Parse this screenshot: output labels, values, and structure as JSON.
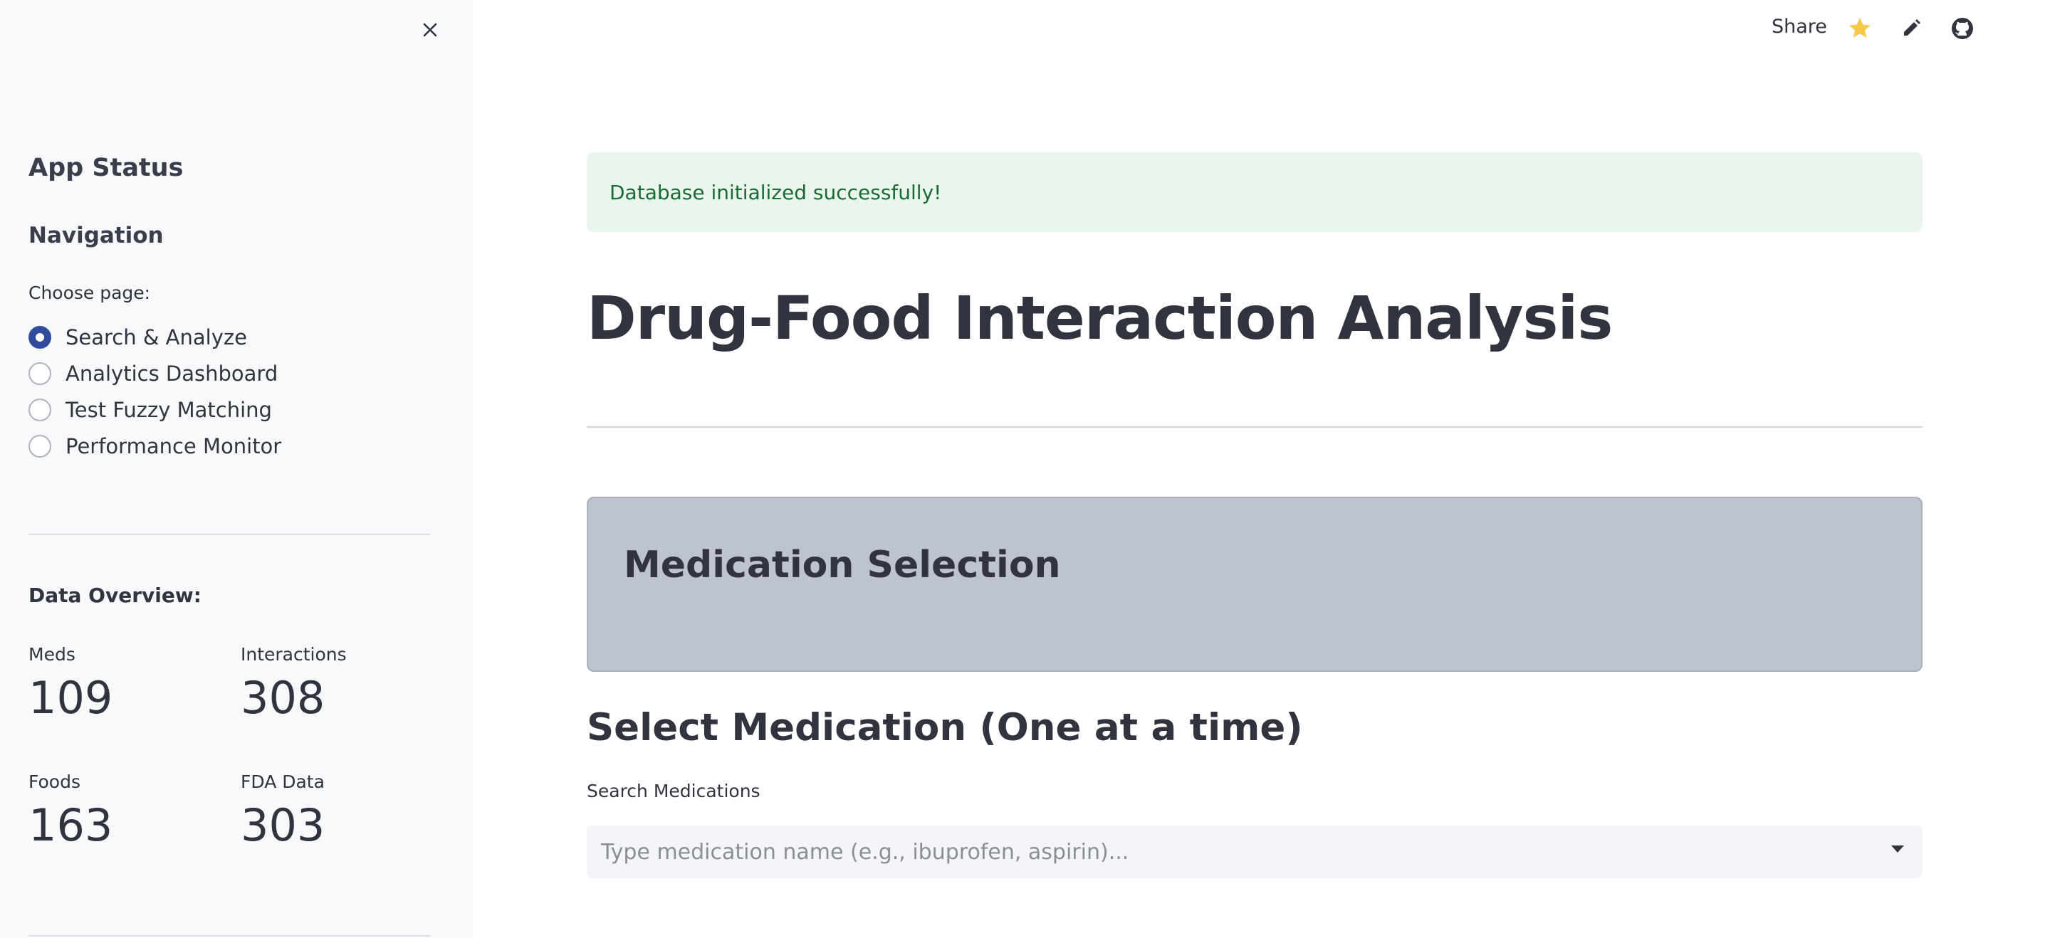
{
  "sidebar": {
    "app_status_heading": "App Status",
    "navigation_heading": "Navigation",
    "choose_page_label": "Choose page:",
    "pages": [
      {
        "label": "Search & Analyze",
        "selected": true
      },
      {
        "label": "Analytics Dashboard",
        "selected": false
      },
      {
        "label": "Test Fuzzy Matching",
        "selected": false
      },
      {
        "label": "Performance Monitor",
        "selected": false
      }
    ],
    "data_overview_heading": "Data Overview:",
    "metrics": [
      {
        "label": "Meds",
        "value": "109"
      },
      {
        "label": "Interactions",
        "value": "308"
      },
      {
        "label": "Foods",
        "value": "163"
      },
      {
        "label": "FDA Data",
        "value": "303"
      }
    ],
    "close_icon": "close-icon"
  },
  "toolbar": {
    "share_label": "Share",
    "icons": [
      "star-icon",
      "pencil-icon",
      "github-icon"
    ],
    "star_color": "#f7c948"
  },
  "main": {
    "alert_text": "Database initialized successfully!",
    "title": "Drug-Food Interaction Analysis",
    "section_title": "Medication Selection",
    "select_heading": "Select Medication (One at a time)",
    "search_label": "Search Medications",
    "search_placeholder": "Type medication name (e.g., ibuprofen, aspirin)...",
    "search_value": ""
  },
  "colors": {
    "sidebar_bg": "#f8f9fb",
    "radio_selected": "#2f4b99",
    "alert_bg": "#eaf6ed",
    "alert_text": "#1b6a33",
    "section_box_bg": "#bdc4ce"
  }
}
